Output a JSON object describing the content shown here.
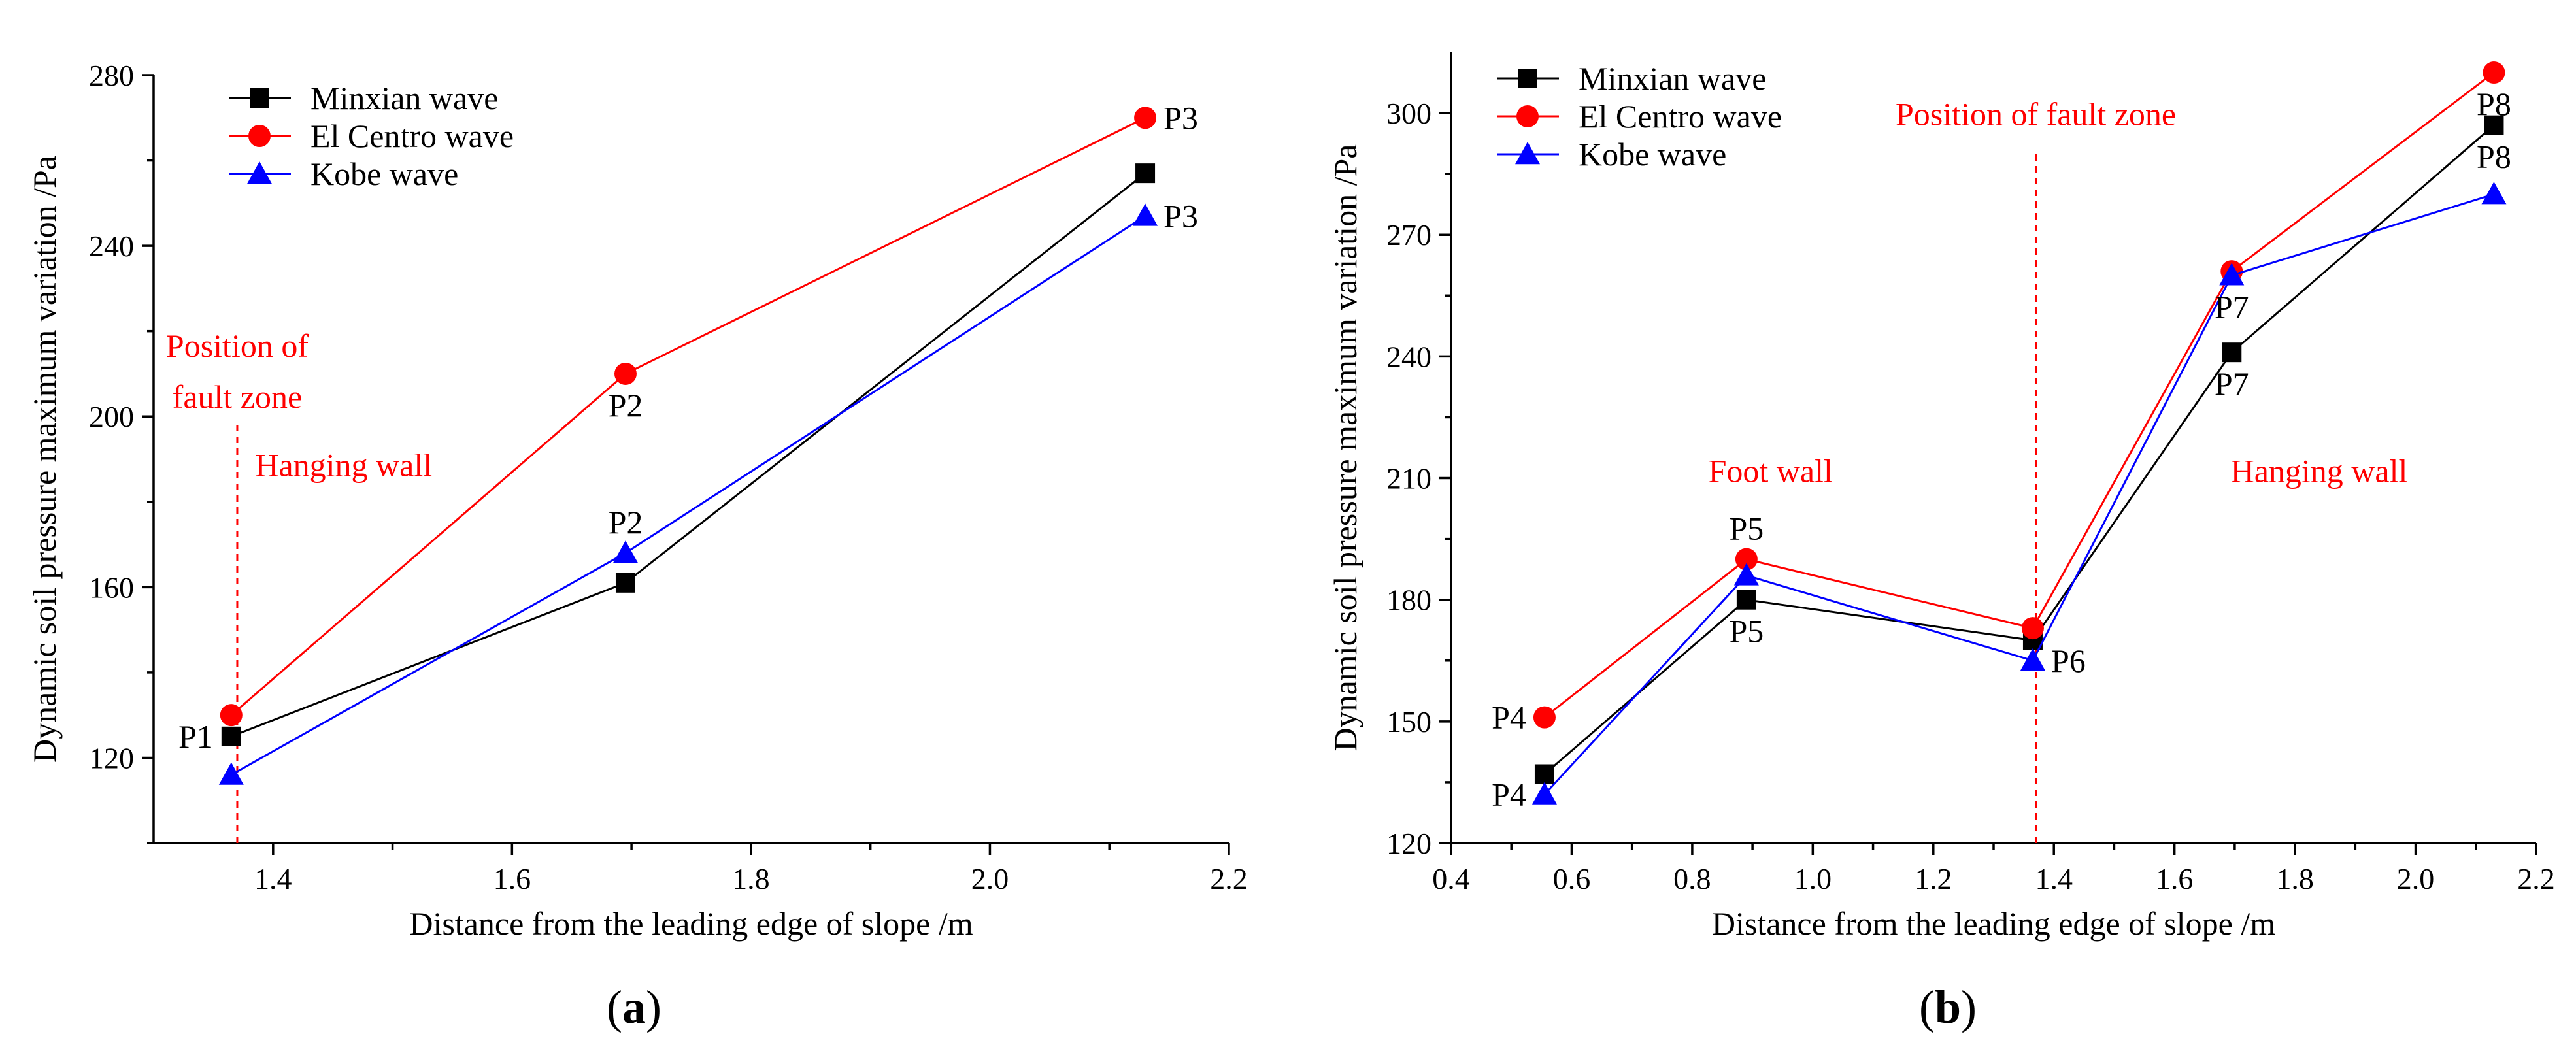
{
  "chart_data": [
    {
      "type": "line",
      "panel_label": "a",
      "xlabel": "Distance from the leading edge of slope /m",
      "ylabel": "Dynamic soil pressure maximum variation /Pa",
      "xlim": [
        1.3,
        2.2
      ],
      "ylim": [
        100,
        280
      ],
      "x_ticks": [
        1.4,
        1.6,
        1.8,
        2.0,
        2.2
      ],
      "x_tick_labels": [
        "1.4",
        "1.6",
        "1.8",
        "2.0",
        "2.2"
      ],
      "y_ticks": [
        120,
        160,
        200,
        240,
        280
      ],
      "y_tick_labels": [
        "120",
        "160",
        "200",
        "240",
        "280"
      ],
      "legend_position": "top-left",
      "x": [
        1.365,
        1.695,
        2.13
      ],
      "series": [
        {
          "name": "Minxian wave",
          "color": "#000000",
          "marker": "square",
          "values": [
            125,
            161,
            257
          ]
        },
        {
          "name": "El Centro wave",
          "color": "#ff0000",
          "marker": "circle",
          "values": [
            130,
            210,
            270
          ]
        },
        {
          "name": "Kobe wave",
          "color": "#0000ff",
          "marker": "triangle",
          "values": [
            116,
            168,
            247
          ]
        }
      ],
      "fault_line_x": 1.37,
      "point_labels": [
        {
          "text": "P1",
          "x": 1.365,
          "y": 125,
          "pos": "left"
        },
        {
          "text": "P2",
          "x": 1.695,
          "y": 210,
          "pos": "below"
        },
        {
          "text": "P2",
          "x": 1.695,
          "y": 168,
          "pos": "above"
        },
        {
          "text": "P3",
          "x": 2.13,
          "y": 270,
          "pos": "right"
        },
        {
          "text": "P3",
          "x": 2.13,
          "y": 247,
          "pos": "right"
        }
      ],
      "annotations": [
        {
          "text": "Position of",
          "x": 1.37,
          "y": 214,
          "align": "middle"
        },
        {
          "text": "fault zone",
          "x": 1.37,
          "y": 202,
          "align": "middle"
        },
        {
          "text": "Hanging wall",
          "x": 1.385,
          "y": 186,
          "align": "start"
        }
      ]
    },
    {
      "type": "line",
      "panel_label": "b",
      "xlabel": "Distance from the leading edge of slope /m",
      "ylabel": "Dynamic soil pressure maximum variation /Pa",
      "xlim": [
        0.4,
        2.2
      ],
      "ylim": [
        120,
        315
      ],
      "x_ticks": [
        0.4,
        0.6,
        0.8,
        1.0,
        1.2,
        1.4,
        1.6,
        1.8,
        2.0,
        2.2
      ],
      "x_tick_labels": [
        "0.4",
        "0.6",
        "0.8",
        "1.0",
        "1.2",
        "1.4",
        "1.6",
        "1.8",
        "2.0",
        "2.2"
      ],
      "y_ticks": [
        120,
        150,
        180,
        210,
        240,
        270,
        300
      ],
      "y_tick_labels": [
        "120",
        "150",
        "180",
        "210",
        "240",
        "270",
        "300"
      ],
      "legend_position": "top-left",
      "x": [
        0.555,
        0.89,
        1.365,
        1.695,
        2.13
      ],
      "series": [
        {
          "name": "Minxian wave",
          "color": "#000000",
          "marker": "square",
          "values": [
            137,
            180,
            170,
            241,
            297
          ]
        },
        {
          "name": "El Centro wave",
          "color": "#ff0000",
          "marker": "circle",
          "values": [
            151,
            190,
            173,
            261,
            310
          ]
        },
        {
          "name": "Kobe wave",
          "color": "#0000ff",
          "marker": "triangle",
          "values": [
            132,
            186,
            165,
            260,
            280
          ]
        }
      ],
      "fault_line_x": 1.37,
      "point_labels": [
        {
          "text": "P4",
          "x": 0.555,
          "y": 151,
          "pos": "left"
        },
        {
          "text": "P4",
          "x": 0.555,
          "y": 132,
          "pos": "left"
        },
        {
          "text": "P5",
          "x": 0.89,
          "y": 190,
          "pos": "above"
        },
        {
          "text": "P5",
          "x": 0.89,
          "y": 180,
          "pos": "below"
        },
        {
          "text": "P6",
          "x": 1.365,
          "y": 165,
          "pos": "right"
        },
        {
          "text": "P7",
          "x": 1.695,
          "y": 260,
          "pos": "below"
        },
        {
          "text": "P7",
          "x": 1.695,
          "y": 241,
          "pos": "below"
        },
        {
          "text": "P8",
          "x": 2.13,
          "y": 310,
          "pos": "below"
        },
        {
          "text": "P8",
          "x": 2.13,
          "y": 297,
          "pos": "below"
        }
      ],
      "annotations": [
        {
          "text": "Position of fault zone",
          "x": 1.37,
          "y": 297,
          "align": "middle"
        },
        {
          "text": "Foot wall",
          "x": 0.93,
          "y": 209,
          "align": "middle"
        },
        {
          "text": "Hanging wall",
          "x": 1.84,
          "y": 209,
          "align": "middle"
        }
      ]
    }
  ]
}
